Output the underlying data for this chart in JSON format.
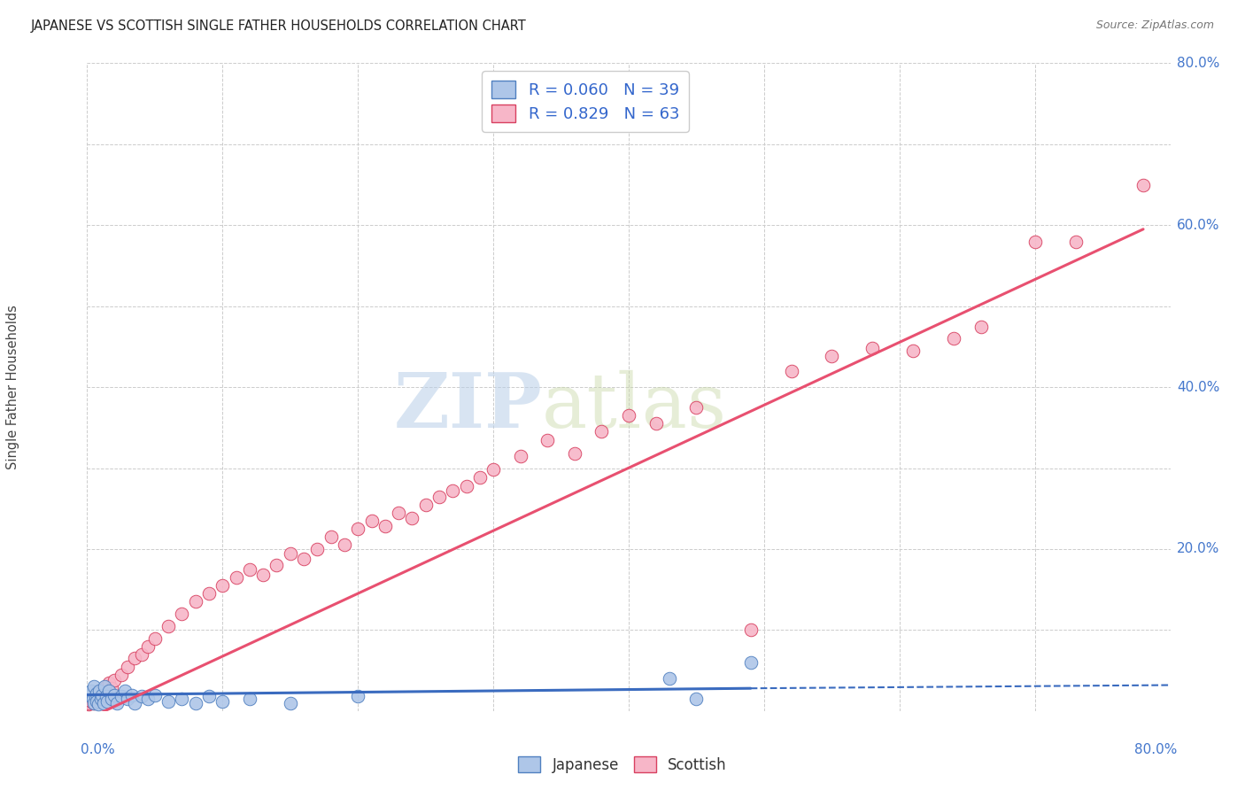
{
  "title": "JAPANESE VS SCOTTISH SINGLE FATHER HOUSEHOLDS CORRELATION CHART",
  "source": "Source: ZipAtlas.com",
  "ylabel": "Single Father Households",
  "watermark_zip": "ZIP",
  "watermark_atlas": "atlas",
  "xlim": [
    0.0,
    0.8
  ],
  "ylim": [
    0.0,
    0.8
  ],
  "yticks": [
    0.0,
    0.2,
    0.4,
    0.6,
    0.8
  ],
  "ytick_labels": [
    "",
    "20.0%",
    "40.0%",
    "60.0%",
    "80.0%"
  ],
  "xticks": [
    0.0,
    0.1,
    0.2,
    0.3,
    0.4,
    0.5,
    0.6,
    0.7,
    0.8
  ],
  "japanese_R": 0.06,
  "japanese_N": 39,
  "scottish_R": 0.829,
  "scottish_N": 63,
  "japanese_color": "#aec6e8",
  "scottish_color": "#f7b6c8",
  "japanese_line_color": "#3a6bbf",
  "scottish_line_color": "#e85070",
  "japanese_edge_color": "#5080c0",
  "scottish_edge_color": "#d84060",
  "grid_color": "#cccccc",
  "background_color": "#ffffff",
  "japanese_x": [
    0.002,
    0.003,
    0.004,
    0.005,
    0.005,
    0.006,
    0.007,
    0.007,
    0.008,
    0.009,
    0.01,
    0.011,
    0.012,
    0.013,
    0.014,
    0.015,
    0.016,
    0.018,
    0.02,
    0.022,
    0.025,
    0.028,
    0.03,
    0.033,
    0.035,
    0.04,
    0.045,
    0.05,
    0.06,
    0.07,
    0.08,
    0.09,
    0.1,
    0.12,
    0.15,
    0.2,
    0.43,
    0.45,
    0.49
  ],
  "japanese_y": [
    0.02,
    0.025,
    0.015,
    0.03,
    0.01,
    0.018,
    0.022,
    0.012,
    0.008,
    0.025,
    0.015,
    0.02,
    0.01,
    0.03,
    0.018,
    0.012,
    0.025,
    0.015,
    0.02,
    0.01,
    0.018,
    0.025,
    0.015,
    0.02,
    0.01,
    0.018,
    0.015,
    0.02,
    0.012,
    0.015,
    0.01,
    0.018,
    0.012,
    0.015,
    0.01,
    0.018,
    0.04,
    0.015,
    0.06
  ],
  "scottish_x": [
    0.001,
    0.002,
    0.003,
    0.004,
    0.005,
    0.006,
    0.007,
    0.008,
    0.009,
    0.01,
    0.012,
    0.014,
    0.016,
    0.018,
    0.02,
    0.025,
    0.03,
    0.035,
    0.04,
    0.045,
    0.05,
    0.06,
    0.07,
    0.08,
    0.09,
    0.1,
    0.11,
    0.12,
    0.13,
    0.14,
    0.15,
    0.16,
    0.17,
    0.18,
    0.19,
    0.2,
    0.21,
    0.22,
    0.23,
    0.24,
    0.25,
    0.26,
    0.27,
    0.28,
    0.29,
    0.3,
    0.32,
    0.34,
    0.36,
    0.38,
    0.4,
    0.42,
    0.45,
    0.49,
    0.52,
    0.55,
    0.58,
    0.61,
    0.64,
    0.66,
    0.7,
    0.73,
    0.78
  ],
  "scottish_y": [
    0.008,
    0.01,
    0.012,
    0.015,
    0.01,
    0.018,
    0.02,
    0.015,
    0.025,
    0.02,
    0.025,
    0.03,
    0.035,
    0.028,
    0.038,
    0.045,
    0.055,
    0.065,
    0.07,
    0.08,
    0.09,
    0.105,
    0.12,
    0.135,
    0.145,
    0.155,
    0.165,
    0.175,
    0.168,
    0.18,
    0.195,
    0.188,
    0.2,
    0.215,
    0.205,
    0.225,
    0.235,
    0.228,
    0.245,
    0.238,
    0.255,
    0.265,
    0.272,
    0.278,
    0.288,
    0.298,
    0.315,
    0.335,
    0.318,
    0.345,
    0.365,
    0.355,
    0.375,
    0.1,
    0.42,
    0.438,
    0.448,
    0.445,
    0.46,
    0.475,
    0.58,
    0.58,
    0.65
  ],
  "jp_line_x0": 0.0,
  "jp_line_x1": 0.49,
  "jp_line_x2": 0.8,
  "jp_line_y0": 0.02,
  "jp_line_y1": 0.028,
  "jp_line_y2": 0.032,
  "sc_line_x0": 0.0,
  "sc_line_x1": 0.78,
  "sc_line_y0": -0.01,
  "sc_line_y1": 0.595
}
